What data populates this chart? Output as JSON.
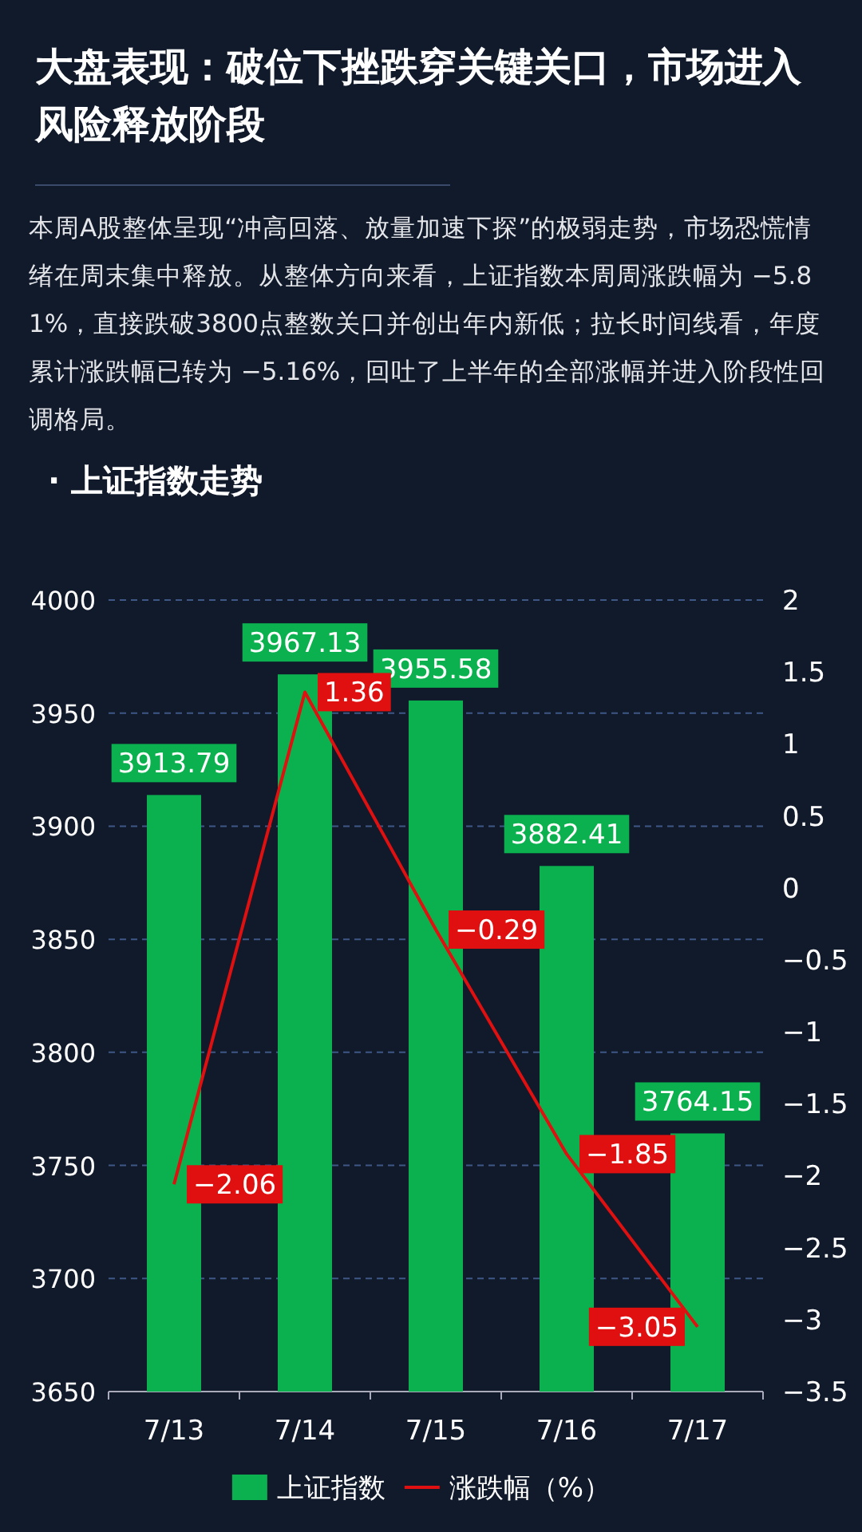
{
  "chart_data": {
    "type": "bar",
    "title": "大盘表现：破位下挫跌穿关键关口，市场进入风险释放阶段",
    "subtitle": "· 上证指数走势",
    "annotations": [
      "本周A股整体呈现“冲高回落、放量加速下探”的极弱走势，市场恐慌情绪在周末集中释放。从整体方向来看，上证指数本周周涨跌幅为 −5.81%，直接跌破3800点整数关口并创出年内新低；拉长时间线看，年度累计涨跌幅已转为 −5.16%，回吐了上半年的全部涨幅并进入阶段性回调格局。"
    ],
    "categories": [
      "7/13",
      "7/14",
      "7/15",
      "7/16",
      "7/17"
    ],
    "series": [
      {
        "name": "上证指数",
        "color": "#0bb14e",
        "values": [
          3913.79,
          3967.13,
          3955.58,
          3882.41,
          3764.15
        ]
      },
      {
        "name": "涨跌幅（%）",
        "type": "line",
        "axis": "y2",
        "color": "#e01010",
        "values": [
          -2.06,
          1.36,
          -0.29,
          -1.85,
          -3.05
        ]
      }
    ],
    "ylim": [
      3650,
      4000
    ],
    "yticks": [
      3650,
      3700,
      3750,
      3800,
      3850,
      3900,
      3950,
      4000
    ],
    "y2lim": [
      -3.5,
      2
    ],
    "y2ticks": [
      {
        "value": -3.5,
        "label": "−3.5"
      },
      {
        "value": -3,
        "label": "−3"
      },
      {
        "value": -2.5,
        "label": "−2.5"
      },
      {
        "value": -2,
        "label": "−2"
      },
      {
        "value": -1.5,
        "label": "−1.5"
      },
      {
        "value": -1,
        "label": "−1"
      },
      {
        "value": -0.5,
        "label": "−0.5"
      },
      0,
      0.5,
      1,
      1.5,
      2
    ],
    "grid": "y",
    "legend": "bottom",
    "data_labels": true,
    "marker": "none"
  }
}
